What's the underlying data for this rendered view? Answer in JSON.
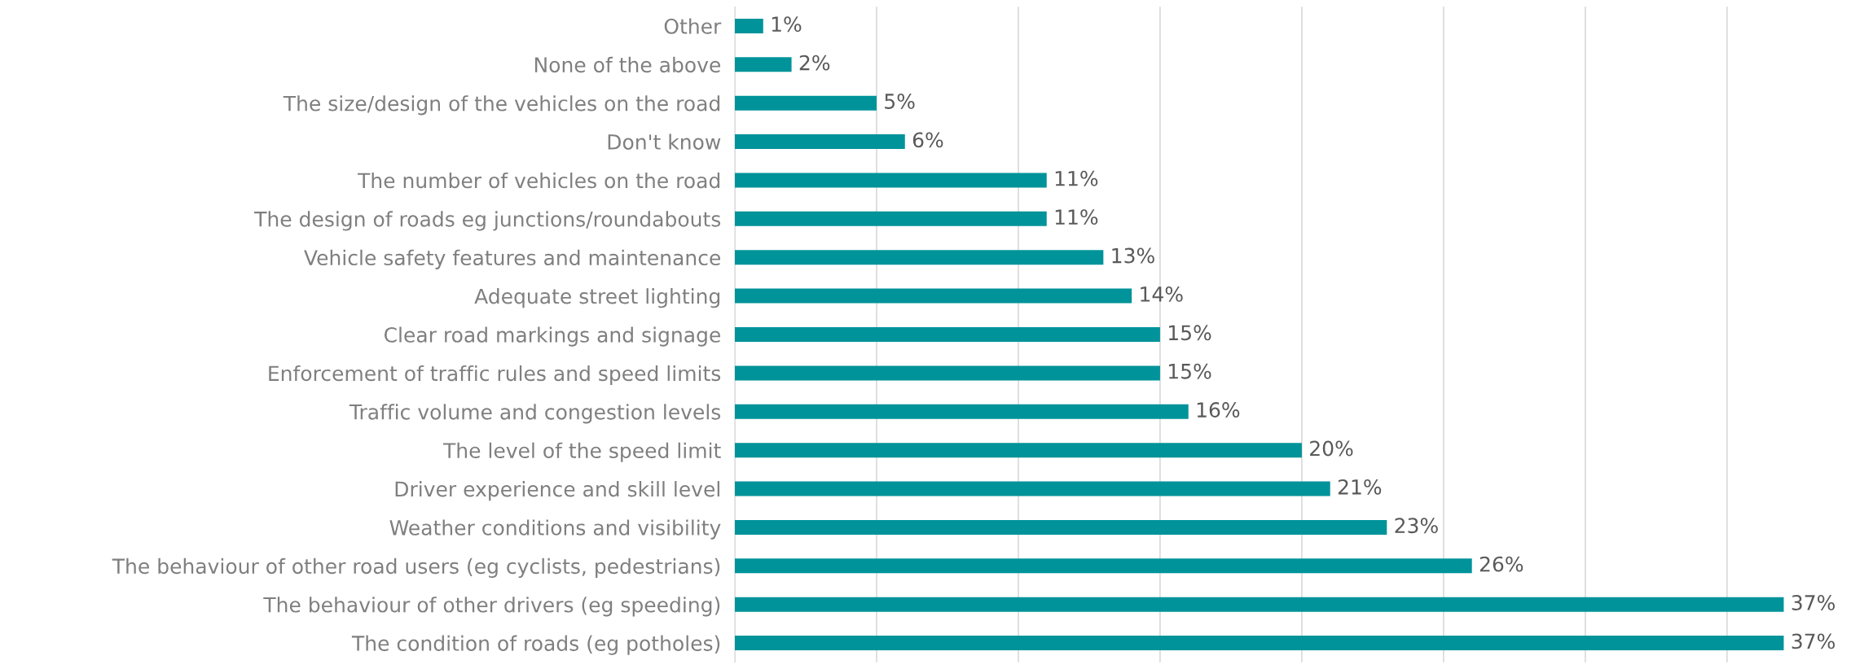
{
  "chart_data": {
    "type": "bar",
    "orientation": "horizontal",
    "categories": [
      "Other",
      "None of the above",
      "The size/design of the vehicles on the road",
      "Don't know",
      "The number of vehicles on the road",
      "The design of roads eg junctions/roundabouts",
      "Vehicle safety features and maintenance",
      "Adequate street lighting",
      "Clear road markings and signage",
      "Enforcement of traffic rules and speed limits",
      "Traffic volume and congestion levels",
      "The level of the speed limit",
      "Driver experience and skill level",
      "Weather conditions and visibility",
      "The behaviour of other road users (eg cyclists, pedestrians)",
      "The behaviour of other drivers (eg speeding)",
      "The condition of roads (eg potholes)"
    ],
    "values": [
      1,
      2,
      5,
      6,
      11,
      11,
      13,
      14,
      15,
      15,
      16,
      20,
      21,
      23,
      26,
      37,
      37
    ],
    "color": "#00939a",
    "value_labels": [
      "1%",
      "2%",
      "5%",
      "6%",
      "11%",
      "11%",
      "13%",
      "14%",
      "15%",
      "15%",
      "16%",
      "20%",
      "21%",
      "23%",
      "26%",
      "37%",
      "37%"
    ],
    "xticks": [
      {
        "value": 0,
        "label": null
      },
      {
        "value": 5,
        "label": null
      },
      {
        "value": 10,
        "label": null
      },
      {
        "value": 15,
        "label": null
      },
      {
        "value": 20,
        "label": null
      },
      {
        "value": 25,
        "label": null
      },
      {
        "value": 30,
        "label": null
      },
      {
        "value": 35,
        "label": null
      }
    ],
    "tick_labels": "y",
    "grid": "x"
  }
}
